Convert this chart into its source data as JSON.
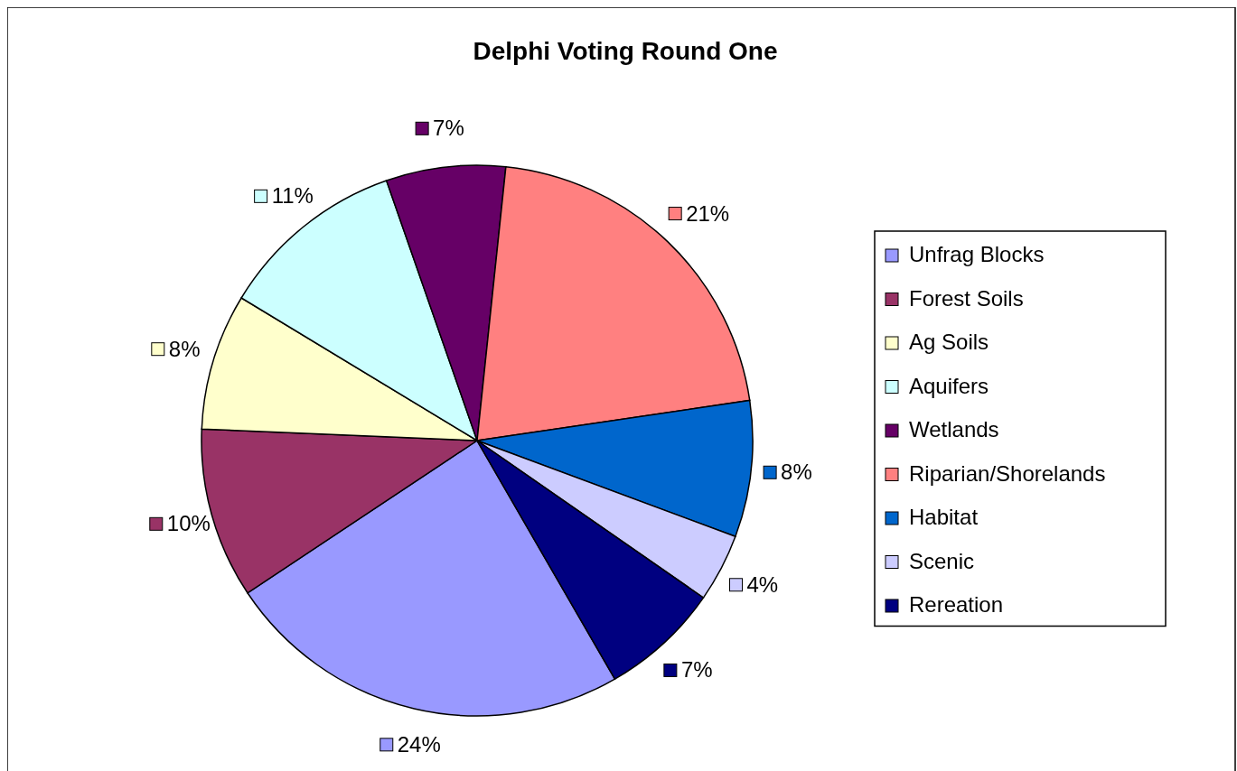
{
  "chart_data": {
    "type": "pie",
    "title": "Delphi Voting Round One",
    "categories": [
      "Unfrag Blocks",
      "Forest Soils",
      "Ag Soils",
      "Aquifers",
      "Wetlands",
      "Riparian/Shorelands",
      "Habitat",
      "Scenic",
      "Rereation"
    ],
    "values": [
      24,
      10,
      8,
      11,
      7,
      21,
      8,
      4,
      7
    ],
    "value_labels": [
      "24%",
      "10%",
      "8%",
      "11%",
      "7%",
      "21%",
      "8%",
      "4%",
      "7%"
    ],
    "colors": [
      "#9999ff",
      "#993366",
      "#ffffcc",
      "#ccffff",
      "#660066",
      "#ff8080",
      "#0066cc",
      "#ccccff",
      "#000080"
    ],
    "legend": "right"
  }
}
